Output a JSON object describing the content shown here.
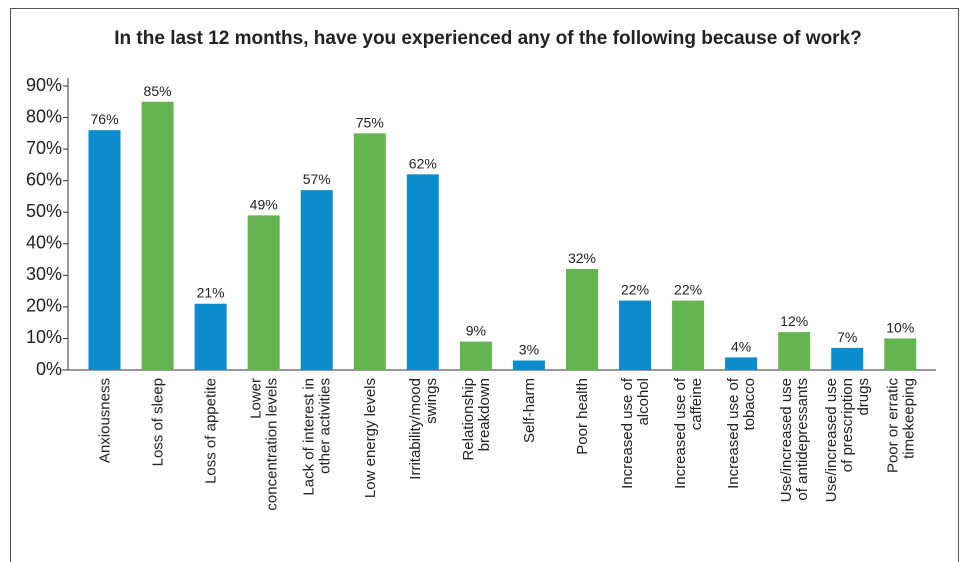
{
  "chart_data": {
    "type": "bar",
    "title": "In the last 12 months, have you experienced any of the following because of work?",
    "categories": [
      "Anxiousness",
      "Loss of sleep",
      "Loss of appetite",
      "Lower\nconcentration levels",
      "Lack of interest in\nother activities",
      "Low energy levels",
      "Irritability/mood\nswings",
      "Relationship\nbreakdown",
      "Self-harm",
      "Poor health",
      "Increased use of\nalcohol",
      "Increased use of\ncaffeine",
      "Increased use of\ntobacco",
      "Use/increased use\nof antidepressants",
      "Use/increased use\nof prescription\ndrugs",
      "Poor or erratic\ntimekeeping"
    ],
    "values": [
      76,
      85,
      21,
      49,
      57,
      75,
      62,
      9,
      3,
      32,
      22,
      22,
      4,
      12,
      7,
      10
    ],
    "value_labels": [
      "76%",
      "85%",
      "21%",
      "49%",
      "57%",
      "75%",
      "62%",
      "9%",
      "3%",
      "32%",
      "22%",
      "22%",
      "4%",
      "12%",
      "7%",
      "10%"
    ],
    "colors": [
      "#0a8ccd",
      "#64b450",
      "#0a8ccd",
      "#64b450",
      "#0a8ccd",
      "#64b450",
      "#0a8ccd",
      "#64b450",
      "#0a8ccd",
      "#64b450",
      "#0a8ccd",
      "#64b450",
      "#0a8ccd",
      "#64b450",
      "#0a8ccd",
      "#64b450"
    ],
    "ylim": [
      0,
      90
    ],
    "yticks": [
      {
        "value": 0,
        "label": "0%"
      },
      {
        "value": 10,
        "label": "10%"
      },
      {
        "value": 20,
        "label": "20%"
      },
      {
        "value": 30,
        "label": "30%"
      },
      {
        "value": 40,
        "label": "40%"
      },
      {
        "value": 50,
        "label": "50%"
      },
      {
        "value": 60,
        "label": "60%"
      },
      {
        "value": 70,
        "label": "70%"
      },
      {
        "value": 80,
        "label": "80%"
      },
      {
        "value": 90,
        "label": "90%"
      }
    ],
    "grid": false
  }
}
